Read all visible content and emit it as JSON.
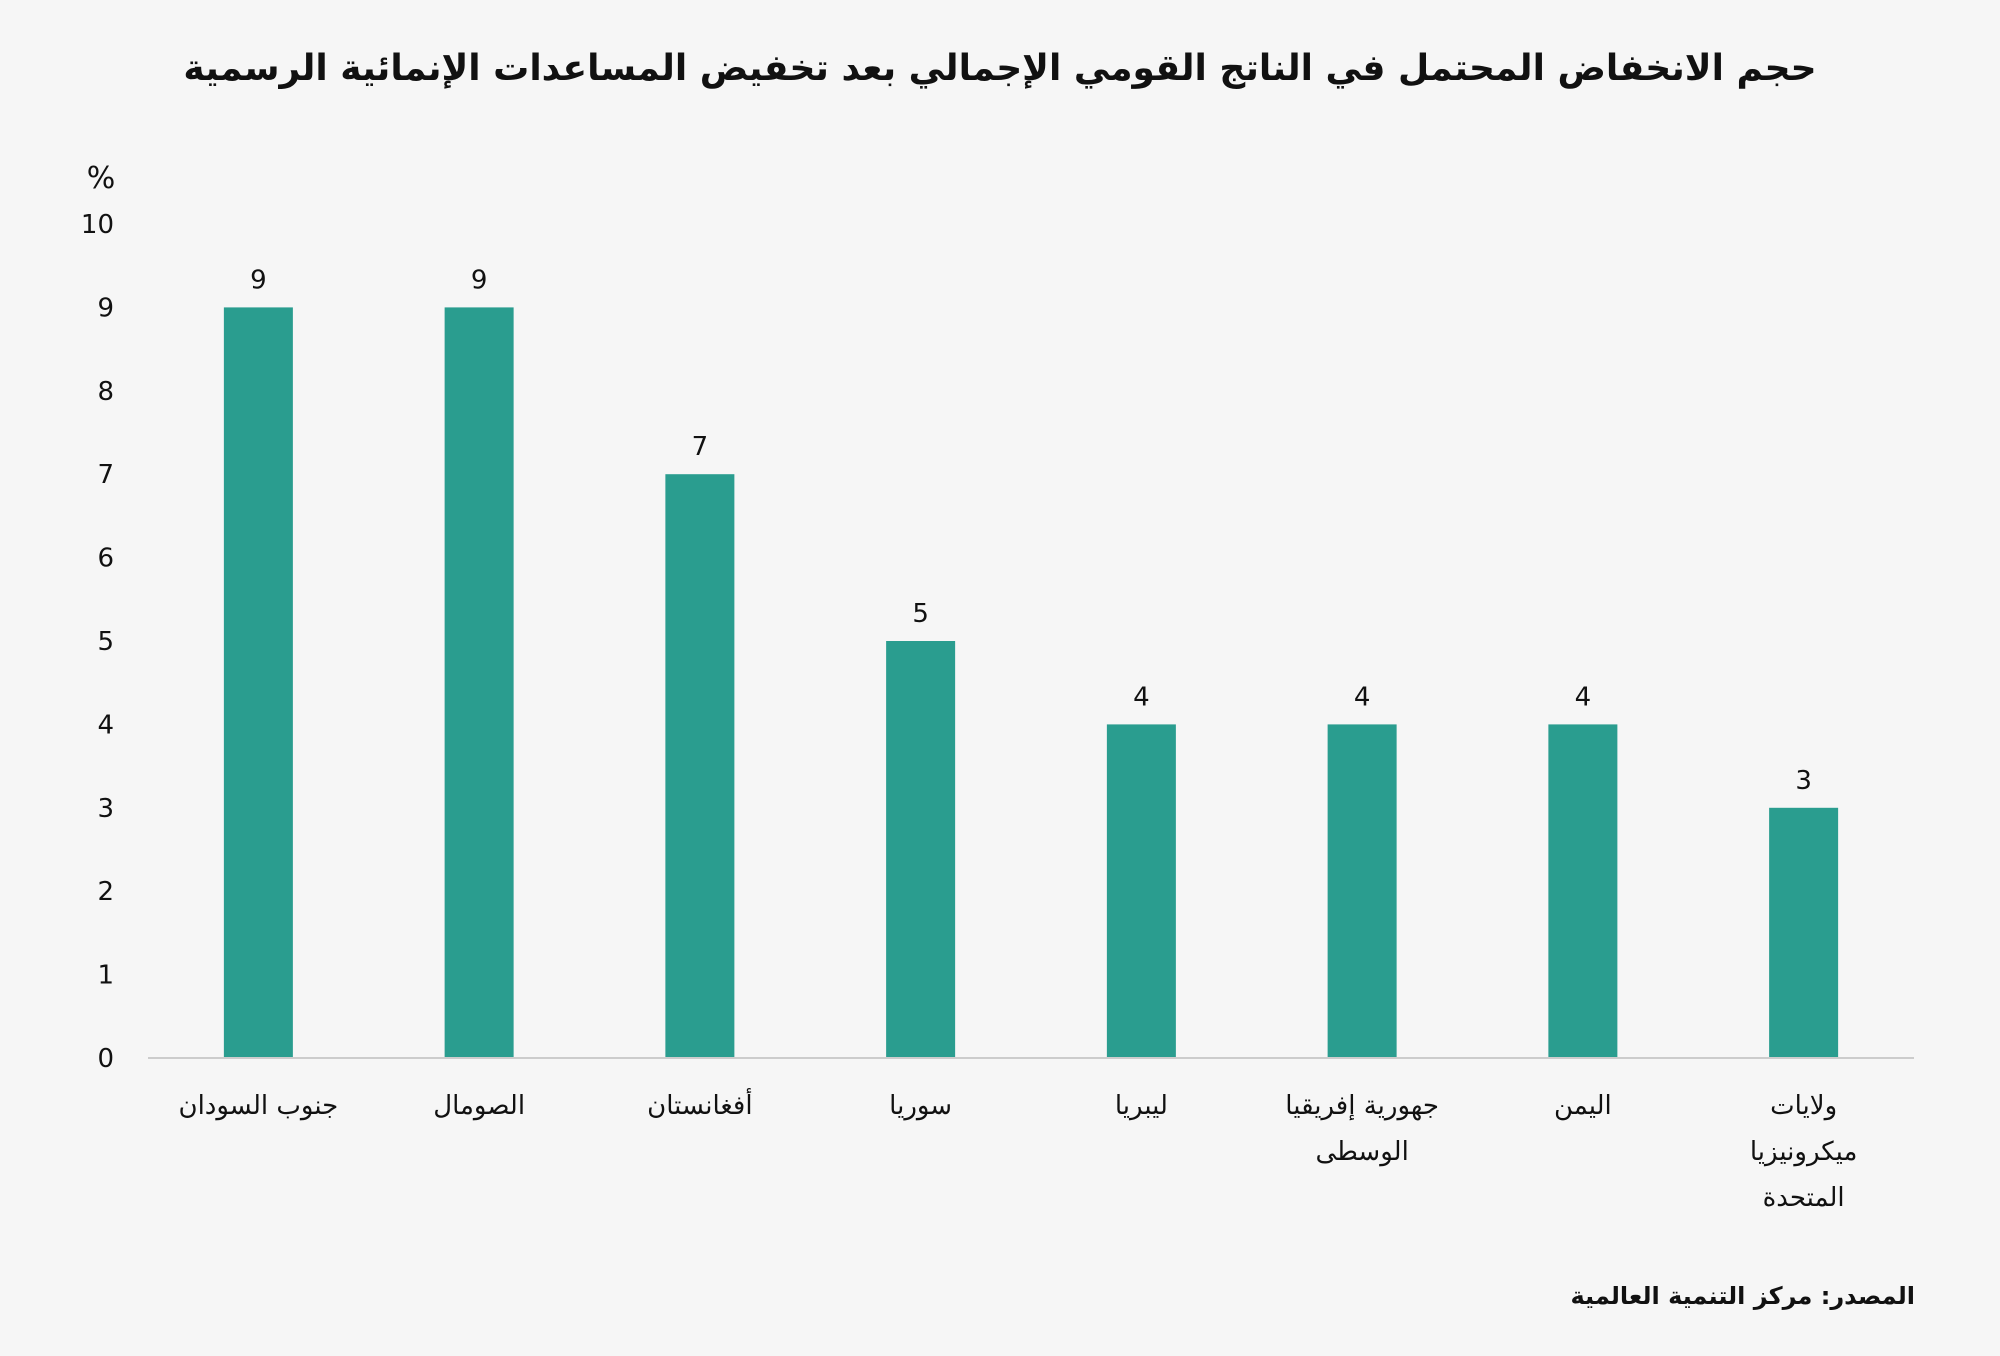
{
  "chart_data": {
    "type": "bar",
    "title": "حجم الانخفاض المحتمل في الناتج القومي الإجمالي بعد تخفيض المساعدات الإنمائية الرسمية",
    "ylabel": "%",
    "xlabel": "",
    "ylim": [
      0,
      10
    ],
    "yticks": [
      "0",
      "1",
      "2",
      "3",
      "4",
      "5",
      "6",
      "7",
      "8",
      "9",
      "10"
    ],
    "grid": false,
    "categories": [
      [
        "جنوب السودان"
      ],
      [
        "الصومال"
      ],
      [
        "أفغانستان"
      ],
      [
        "سوريا"
      ],
      [
        "ليبريا"
      ],
      [
        "جهورية إفريقيا",
        "الوسطى"
      ],
      [
        "اليمن"
      ],
      [
        "ولايات",
        "ميكرونيزيا",
        "المتحدة"
      ]
    ],
    "values": [
      9,
      9,
      7,
      5,
      4,
      4,
      4,
      3
    ],
    "data_labels": [
      "9",
      "9",
      "7",
      "5",
      "4",
      "4",
      "4",
      "3"
    ],
    "bar_color": "#2a9d8f",
    "axis_color": "#cccccc"
  },
  "source": "المصدر: مركز التنمية العالمية"
}
